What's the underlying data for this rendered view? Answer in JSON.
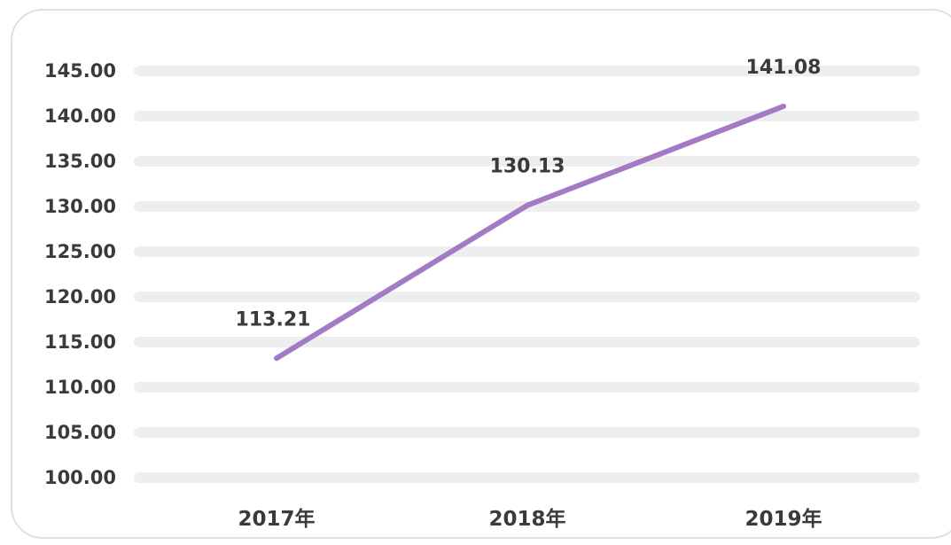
{
  "chart_data": {
    "type": "line",
    "categories": [
      "2017年",
      "2018年",
      "2019年"
    ],
    "series": [
      {
        "values": [
          113.21,
          130.13,
          141.08
        ],
        "data_labels": [
          "113.21",
          "130.13",
          "141.08"
        ]
      }
    ],
    "ylim": [
      100,
      145
    ],
    "yticks": [
      "100.00",
      "105.00",
      "110.00",
      "115.00",
      "120.00",
      "125.00",
      "130.00",
      "135.00",
      "140.00",
      "145.00"
    ],
    "grid": true,
    "line_color": "#a27bc4",
    "grid_color": "#eeeeee"
  }
}
